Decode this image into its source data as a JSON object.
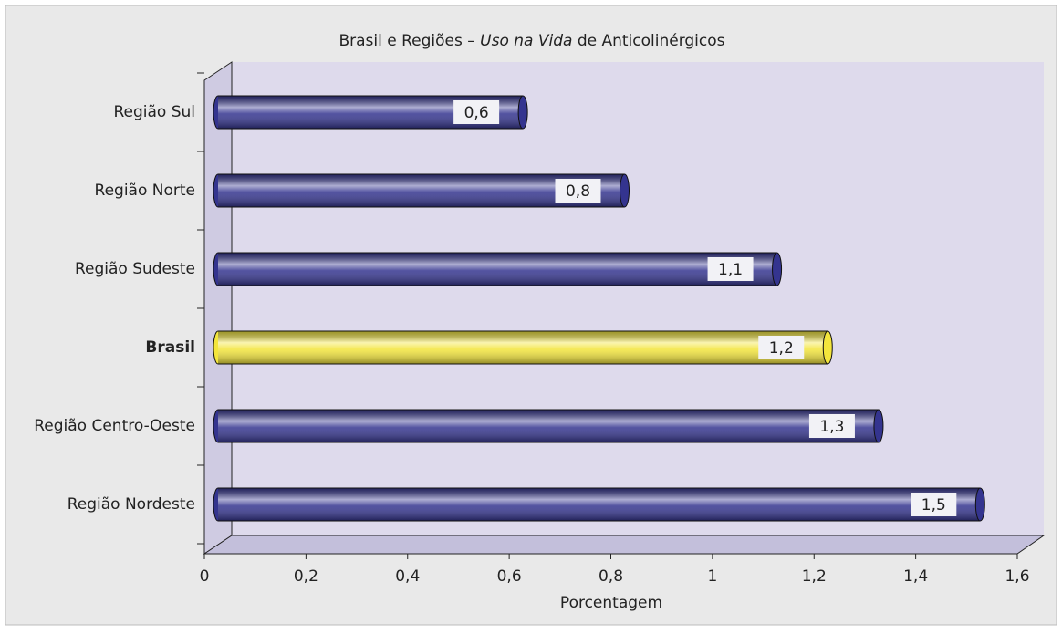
{
  "chart_data": {
    "type": "bar",
    "title": [
      "Brasil e Regiões – ",
      "Uso na Vida",
      " de Anticolinérgicos"
    ],
    "categories": [
      "Região Sul",
      "Região Norte",
      "Região Sudeste",
      "Brasil",
      "Região Centro-Oeste",
      "Região Nordeste"
    ],
    "values": [
      0.6,
      0.8,
      1.1,
      1.2,
      1.3,
      1.5
    ],
    "value_labels": [
      "0,6",
      "0,8",
      "1,1",
      "1,2",
      "1,3",
      "1,5"
    ],
    "colors": [
      "#34348f",
      "#34348f",
      "#34348f",
      "#f3e53c",
      "#34348f",
      "#34348f"
    ],
    "xlim": [
      0,
      1.6
    ],
    "xticks": [
      0,
      {
        "value": 0.2,
        "label": "0,2"
      },
      {
        "value": 0.4,
        "label": "0,4"
      },
      {
        "value": 0.6,
        "label": "0,6"
      },
      {
        "value": 0.8,
        "label": "0,8"
      },
      1,
      {
        "value": 1.2,
        "label": "1,2"
      },
      {
        "value": 1.4,
        "label": "1,4"
      },
      {
        "value": 1.6,
        "label": "1,6"
      }
    ],
    "xlabel": "Porcentagem"
  }
}
